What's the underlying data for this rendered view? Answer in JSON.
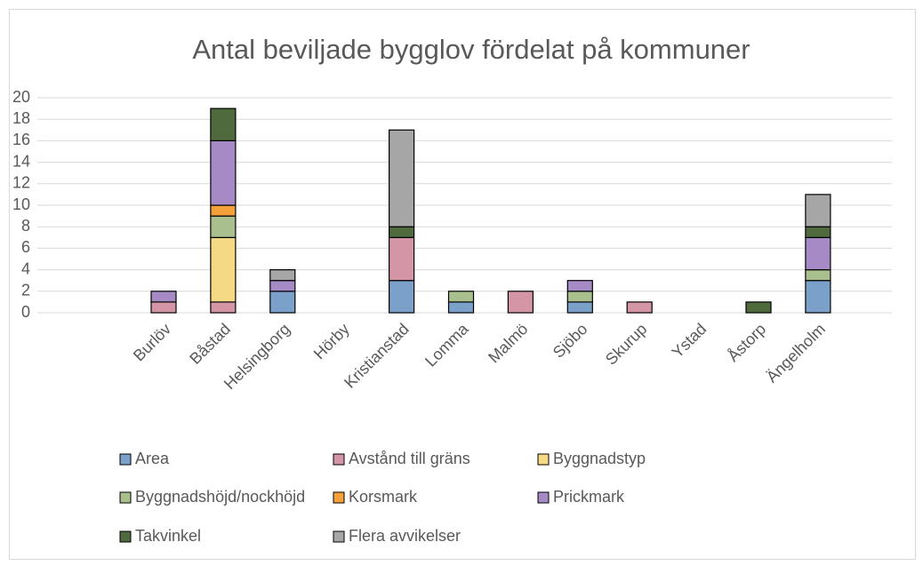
{
  "chart_data": {
    "type": "stacked_bar",
    "title": "Antal beviljade bygglov fördelat på kommuner",
    "categories": [
      "Burlöv",
      "Båstad",
      "Helsingborg",
      "Hörby",
      "Kristianstad",
      "Lomma",
      "Malmö",
      "Sjöbo",
      "Skurup",
      "Ystad",
      "Åstorp",
      "Ängelholm"
    ],
    "series": [
      {
        "name": "Area",
        "color": "#7ba0c9",
        "values": [
          0,
          0,
          2,
          0,
          3,
          1,
          0,
          1,
          0,
          0,
          0,
          3
        ]
      },
      {
        "name": "Avstånd till gräns",
        "color": "#d495a6",
        "values": [
          1,
          1,
          0,
          0,
          4,
          0,
          2,
          0,
          1,
          0,
          0,
          0
        ]
      },
      {
        "name": "Byggnadstyp",
        "color": "#f5d985",
        "values": [
          0,
          6,
          0,
          0,
          0,
          0,
          0,
          0,
          0,
          0,
          0,
          0
        ]
      },
      {
        "name": "Byggnadshöjd/nockhöjd",
        "color": "#a9c08e",
        "values": [
          0,
          2,
          0,
          0,
          0,
          1,
          0,
          1,
          0,
          0,
          0,
          1
        ]
      },
      {
        "name": "Korsmark",
        "color": "#f4a13b",
        "values": [
          0,
          1,
          0,
          0,
          0,
          0,
          0,
          0,
          0,
          0,
          0,
          0
        ]
      },
      {
        "name": "Prickmark",
        "color": "#a58ac6",
        "values": [
          1,
          6,
          1,
          0,
          0,
          0,
          0,
          1,
          0,
          0,
          0,
          3
        ]
      },
      {
        "name": "Takvinkel",
        "color": "#4f6a3c",
        "values": [
          0,
          3,
          0,
          0,
          1,
          0,
          0,
          0,
          0,
          0,
          1,
          1
        ]
      },
      {
        "name": "Flera avvikelser",
        "color": "#a6a6a6",
        "values": [
          0,
          0,
          1,
          0,
          9,
          0,
          0,
          0,
          0,
          0,
          0,
          3
        ]
      }
    ],
    "ylim": [
      0,
      20
    ],
    "yticks": [
      0,
      2,
      4,
      6,
      8,
      10,
      12,
      14,
      16,
      18,
      20
    ],
    "grid": true,
    "legend": "bottom"
  }
}
